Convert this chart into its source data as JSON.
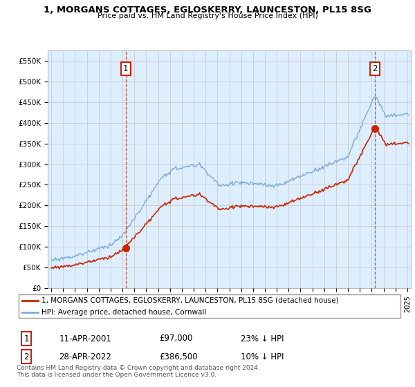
{
  "title": "1, MORGANS COTTAGES, EGLOSKERRY, LAUNCESTON, PL15 8SG",
  "subtitle": "Price paid vs. HM Land Registry's House Price Index (HPI)",
  "legend_line1": "1, MORGANS COTTAGES, EGLOSKERRY, LAUNCESTON, PL15 8SG (detached house)",
  "legend_line2": "HPI: Average price, detached house, Cornwall",
  "sale1_label": "1",
  "sale1_date": "11-APR-2001",
  "sale1_price": "£97,000",
  "sale1_hpi": "23% ↓ HPI",
  "sale2_label": "2",
  "sale2_date": "28-APR-2022",
  "sale2_price": "£386,500",
  "sale2_hpi": "10% ↓ HPI",
  "footnote": "Contains HM Land Registry data © Crown copyright and database right 2024.\nThis data is licensed under the Open Government Licence v3.0.",
  "red_color": "#cc2200",
  "blue_color": "#7aaadd",
  "blue_fill": "#ddeeff",
  "background_color": "#ffffff",
  "grid_color": "#cccccc",
  "sale1_x": 2001.28,
  "sale1_y": 97000,
  "sale2_x": 2022.28,
  "sale2_y": 386500,
  "ylim_min": 0,
  "ylim_max": 575000,
  "yticks": [
    0,
    50000,
    100000,
    150000,
    200000,
    250000,
    300000,
    350000,
    400000,
    450000,
    500000,
    550000
  ],
  "xlim_min": 1994.7,
  "xlim_max": 2025.3
}
